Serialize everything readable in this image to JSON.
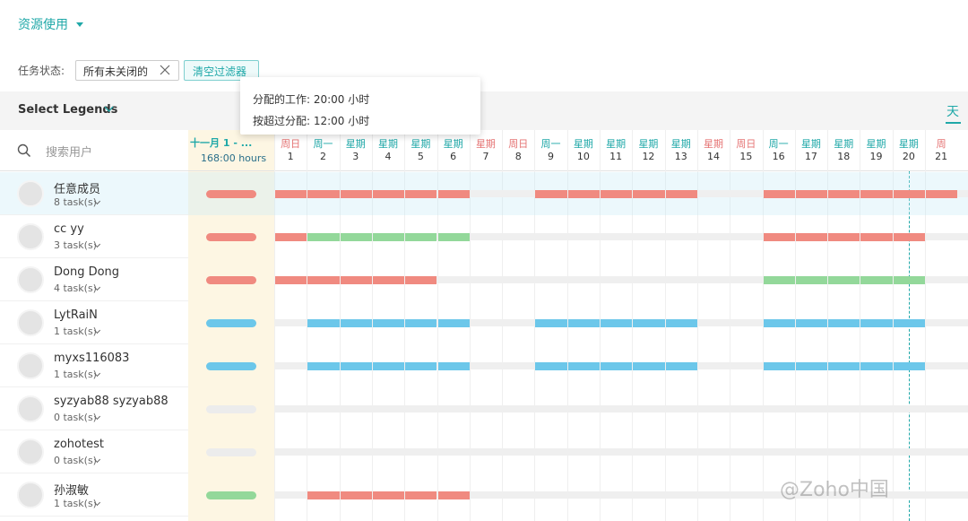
{
  "header": {
    "title": "资源使用"
  },
  "filter": {
    "label": "任务状态:",
    "chip": "所有未关闭的",
    "clear_button": "清空过滤器"
  },
  "tooltip": {
    "lines": [
      "分配的工作: 20:00 小时",
      "按超过分配: 12:00 小时"
    ]
  },
  "toolbar": {
    "legends": "Select Legends",
    "view": "天"
  },
  "search": {
    "placeholder": "搜索用户"
  },
  "timeline": {
    "range": "十一月 1 - ...",
    "total": "168:00 hours",
    "days": [
      {
        "name": "周日",
        "date": 1,
        "color": "#e57373"
      },
      {
        "name": "周一",
        "date": 2,
        "color": "#1fa8a8"
      },
      {
        "name": "星期",
        "date": 3,
        "color": "#1fa8a8"
      },
      {
        "name": "星期",
        "date": 4,
        "color": "#1fa8a8"
      },
      {
        "name": "星期",
        "date": 5,
        "color": "#1fa8a8"
      },
      {
        "name": "星期",
        "date": 6,
        "color": "#1fa8a8"
      },
      {
        "name": "星期",
        "date": 7,
        "color": "#e57373"
      },
      {
        "name": "周日",
        "date": 8,
        "color": "#e57373"
      },
      {
        "name": "周一",
        "date": 9,
        "color": "#1fa8a8"
      },
      {
        "name": "星期",
        "date": 10,
        "color": "#1fa8a8"
      },
      {
        "name": "星期",
        "date": 11,
        "color": "#1fa8a8"
      },
      {
        "name": "星期",
        "date": 12,
        "color": "#1fa8a8"
      },
      {
        "name": "星期",
        "date": 13,
        "color": "#1fa8a8"
      },
      {
        "name": "星期",
        "date": 14,
        "color": "#e57373"
      },
      {
        "name": "周日",
        "date": 15,
        "color": "#e57373"
      },
      {
        "name": "周一",
        "date": 16,
        "color": "#1fa8a8"
      },
      {
        "name": "星期",
        "date": 17,
        "color": "#1fa8a8"
      },
      {
        "name": "星期",
        "date": 18,
        "color": "#1fa8a8"
      },
      {
        "name": "星期",
        "date": 19,
        "color": "#1fa8a8"
      },
      {
        "name": "星期",
        "date": 20,
        "color": "#1fa8a8"
      },
      {
        "name": "周",
        "date": 21,
        "color": "#e57373"
      }
    ]
  },
  "users": [
    {
      "name": "任意成员",
      "tasks": "8 task(s)",
      "summary_color": "#f08a80",
      "cells": [
        "#f08a80",
        "#f08a80",
        "#f08a80",
        "#f08a80",
        "#f08a80",
        "#f08a80",
        null,
        null,
        "#f08a80",
        "#f08a80",
        "#f08a80",
        "#f08a80",
        "#f08a80",
        null,
        null,
        "#f08a80",
        "#f08a80",
        "#f08a80",
        "#f08a80",
        "#f08a80",
        "#f08a80"
      ]
    },
    {
      "name": "cc yy",
      "tasks": "3 task(s)",
      "summary_color": "#f08a80",
      "cells": [
        "#f08a80",
        "#93d89a",
        "#93d89a",
        "#93d89a",
        "#93d89a",
        "#93d89a",
        null,
        null,
        null,
        null,
        null,
        null,
        null,
        null,
        null,
        "#f08a80",
        "#f08a80",
        "#f08a80",
        "#f08a80",
        "#f08a80",
        null
      ]
    },
    {
      "name": "Dong Dong",
      "tasks": "4 task(s)",
      "summary_color": "#f08a80",
      "cells": [
        "#f08a80",
        "#f08a80",
        "#f08a80",
        "#f08a80",
        "#f08a80",
        null,
        null,
        null,
        null,
        null,
        null,
        null,
        null,
        null,
        null,
        "#93d89a",
        "#93d89a",
        "#93d89a",
        "#93d89a",
        "#93d89a",
        null
      ]
    },
    {
      "name": "LytRaiN",
      "tasks": "1 task(s)",
      "summary_color": "#6cc7ea",
      "cells": [
        null,
        "#6cc7ea",
        "#6cc7ea",
        "#6cc7ea",
        "#6cc7ea",
        "#6cc7ea",
        null,
        null,
        "#6cc7ea",
        "#6cc7ea",
        "#6cc7ea",
        "#6cc7ea",
        "#6cc7ea",
        null,
        null,
        "#6cc7ea",
        "#6cc7ea",
        "#6cc7ea",
        "#6cc7ea",
        "#6cc7ea",
        null
      ]
    },
    {
      "name": "myxs116083",
      "tasks": "1 task(s)",
      "summary_color": "#6cc7ea",
      "cells": [
        null,
        "#6cc7ea",
        "#6cc7ea",
        "#6cc7ea",
        "#6cc7ea",
        "#6cc7ea",
        null,
        null,
        "#6cc7ea",
        "#6cc7ea",
        "#6cc7ea",
        "#6cc7ea",
        "#6cc7ea",
        null,
        null,
        "#6cc7ea",
        "#6cc7ea",
        "#6cc7ea",
        "#6cc7ea",
        "#6cc7ea",
        null
      ]
    },
    {
      "name": "syzyab88 syzyab88",
      "tasks": "0 task(s)",
      "summary_color": "#ececec",
      "cells": [
        null,
        null,
        null,
        null,
        null,
        null,
        null,
        null,
        null,
        null,
        null,
        null,
        null,
        null,
        null,
        null,
        null,
        null,
        null,
        null,
        null
      ]
    },
    {
      "name": "zohotest",
      "tasks": "0 task(s)",
      "summary_color": "#ececec",
      "cells": [
        null,
        null,
        null,
        null,
        null,
        null,
        null,
        null,
        null,
        null,
        null,
        null,
        null,
        null,
        null,
        null,
        null,
        null,
        null,
        null,
        null
      ]
    },
    {
      "name": "孙淑敏",
      "tasks": "1 task(s)",
      "summary_color": "#93d89a",
      "cells": [
        null,
        "#f08a80",
        "#f08a80",
        "#f08a80",
        "#f08a80",
        "#f08a80",
        null,
        null,
        null,
        null,
        null,
        null,
        null,
        null,
        null,
        null,
        null,
        null,
        null,
        null,
        null
      ]
    }
  ],
  "watermark": "@Zoho中国"
}
